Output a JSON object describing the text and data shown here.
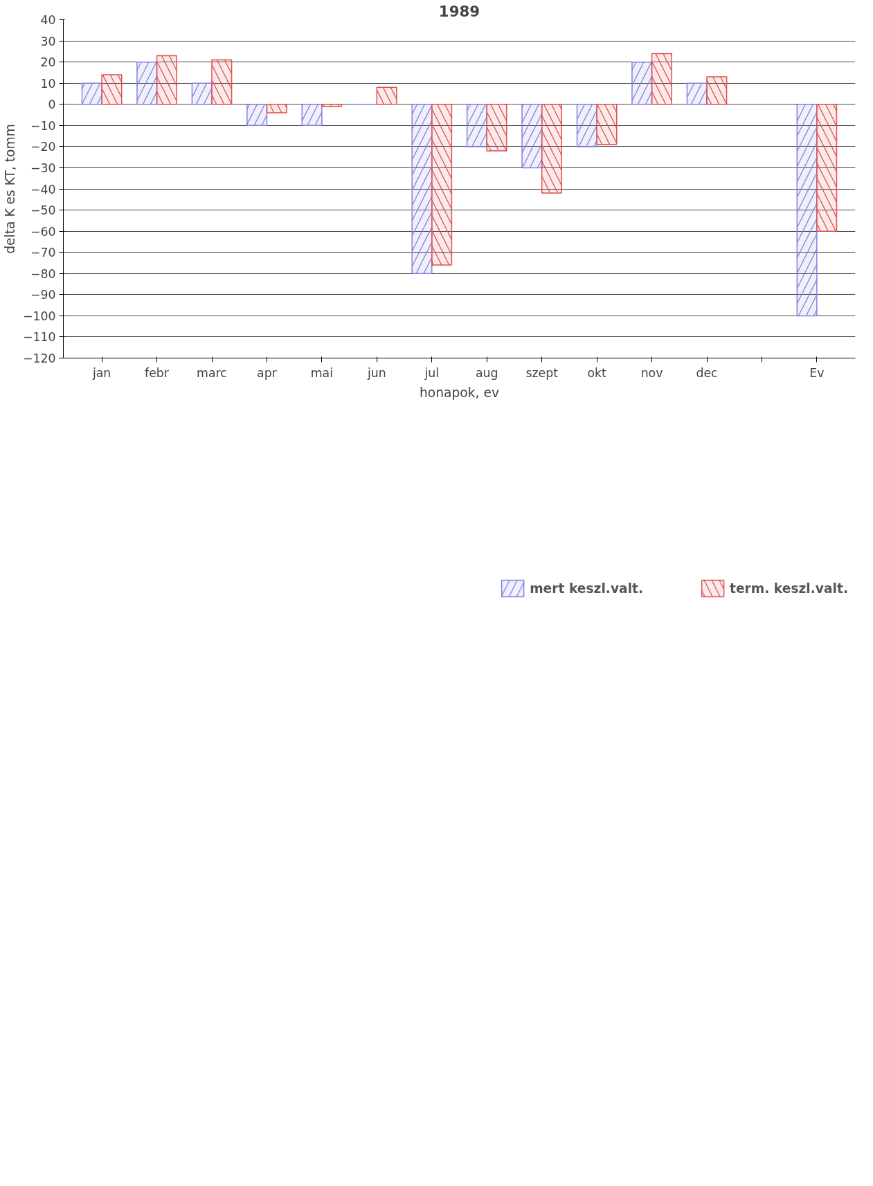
{
  "chart_data": {
    "type": "bar",
    "title": "1989",
    "xlabel": "honapok, ev",
    "ylabel": "delta K es KT, tomm",
    "categories": [
      "jan",
      "febr",
      "marc",
      "apr",
      "mai",
      "jun",
      "jul",
      "aug",
      "szept",
      "okt",
      "nov",
      "dec",
      null,
      "Ev"
    ],
    "series": [
      {
        "name": "mert keszl.valt.",
        "color": "#8080e0",
        "values": [
          10,
          20,
          10,
          -10,
          -10,
          0,
          -80,
          -20,
          -30,
          -20,
          20,
          10,
          null,
          -100
        ]
      },
      {
        "name": "term. keszl.valt.",
        "color": "#e05050",
        "values": [
          14,
          23,
          21,
          -4,
          -1,
          8,
          -76,
          -22,
          -42,
          -19,
          24,
          13,
          null,
          -60
        ]
      }
    ],
    "ylim": [
      -120,
      40
    ],
    "yticks": [
      -120,
      -110,
      -100,
      -90,
      -80,
      -70,
      -60,
      -50,
      -40,
      -30,
      -20,
      -10,
      0,
      10,
      20,
      30,
      40
    ],
    "grid": "y",
    "legend": "bottom"
  }
}
